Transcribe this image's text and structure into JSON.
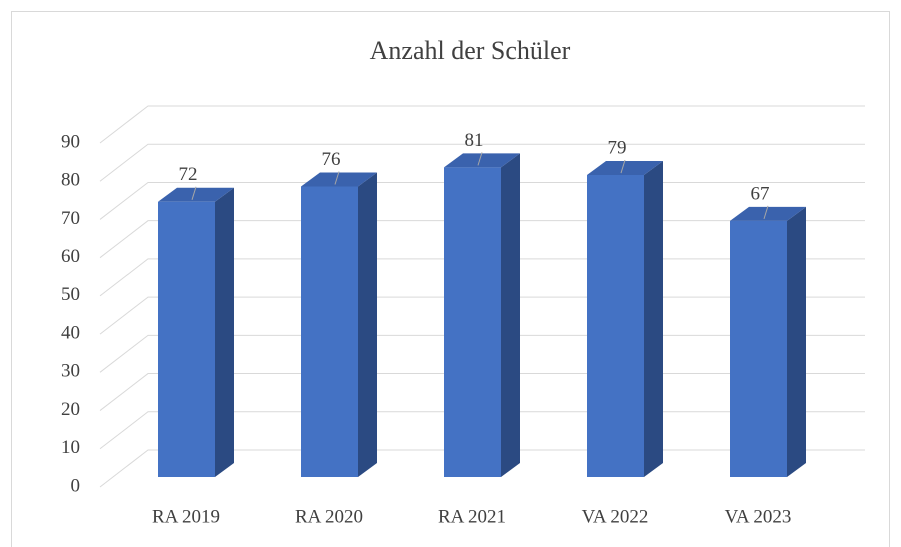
{
  "chart_data": {
    "type": "bar3d",
    "title": "Anzahl der Schüler",
    "categories": [
      "RA 2019",
      "RA 2020",
      "RA 2021",
      "VA 2022",
      "VA 2023"
    ],
    "values": [
      72,
      76,
      81,
      79,
      67
    ],
    "color": "#4472c4",
    "ylim": [
      0,
      90
    ],
    "yticks": [
      0,
      10,
      20,
      30,
      40,
      50,
      60,
      70,
      80,
      90
    ],
    "grid": true
  }
}
